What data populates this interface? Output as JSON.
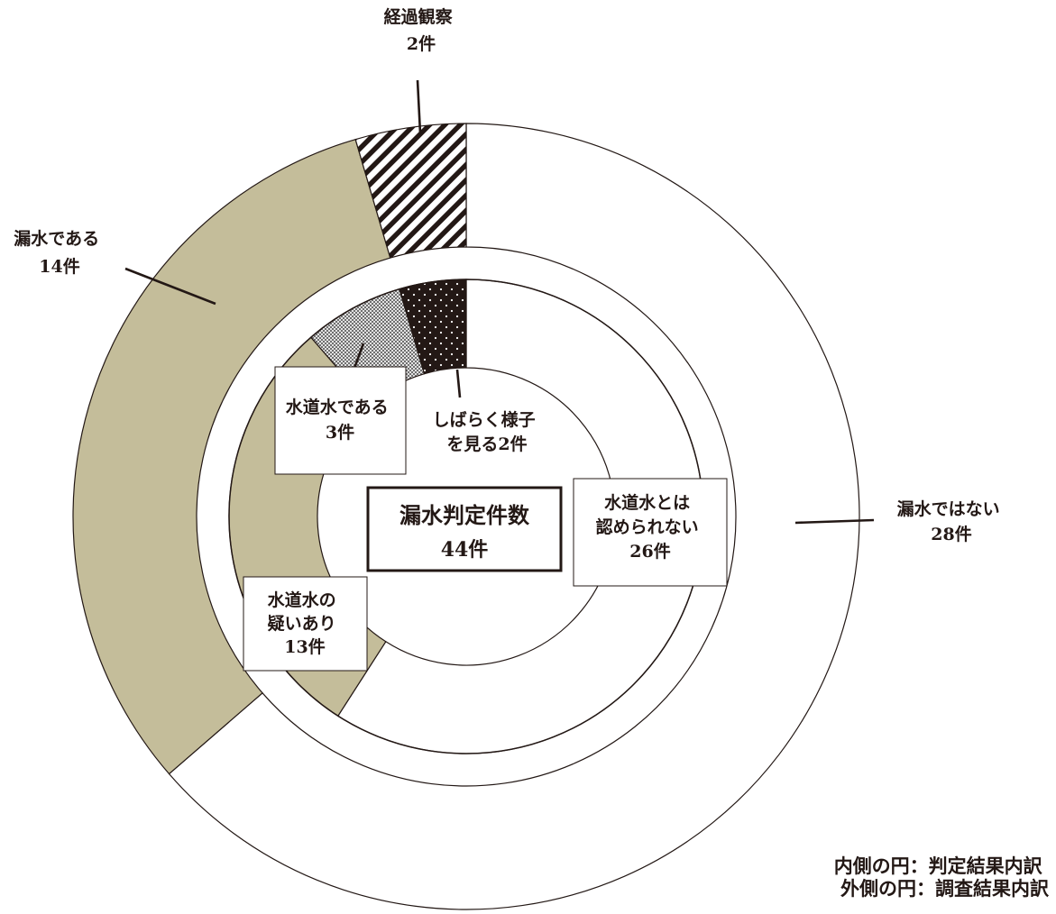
{
  "chart_data": {
    "type": "pie",
    "subtype": "nested-donut",
    "center": {
      "title": "漏水判定件数",
      "value": "44件"
    },
    "outer": {
      "slices": [
        {
          "label": [
            "漏水ではない",
            "28件"
          ],
          "value": 28,
          "color": "#ffffff",
          "pattern": "none"
        },
        {
          "label": [
            "漏水である",
            "14件"
          ],
          "value": 14,
          "color": "#c4bd9a",
          "pattern": "none"
        },
        {
          "label": [
            "経過観察",
            "2件"
          ],
          "value": 2,
          "color": "#ffffff",
          "pattern": "diagonal-stripes"
        }
      ]
    },
    "inner": {
      "slices": [
        {
          "label": [
            "水道水とは",
            "認められない",
            "26件"
          ],
          "value": 26,
          "color": "#ffffff",
          "pattern": "none"
        },
        {
          "label": [
            "水道水の",
            "疑いあり",
            "13件"
          ],
          "value": 13,
          "color": "#c4bd9a",
          "pattern": "none"
        },
        {
          "label": [
            "水道水である",
            "3件"
          ],
          "value": 3,
          "color": "#ffffff",
          "pattern": "checker"
        },
        {
          "label": [
            "しばらく様子",
            "を見る2件"
          ],
          "value": 2,
          "color": "#231815",
          "pattern": "dots"
        }
      ]
    },
    "legend": [
      "内側の円：判定結果内訳",
      "外側の円：調査結果内訳"
    ]
  }
}
